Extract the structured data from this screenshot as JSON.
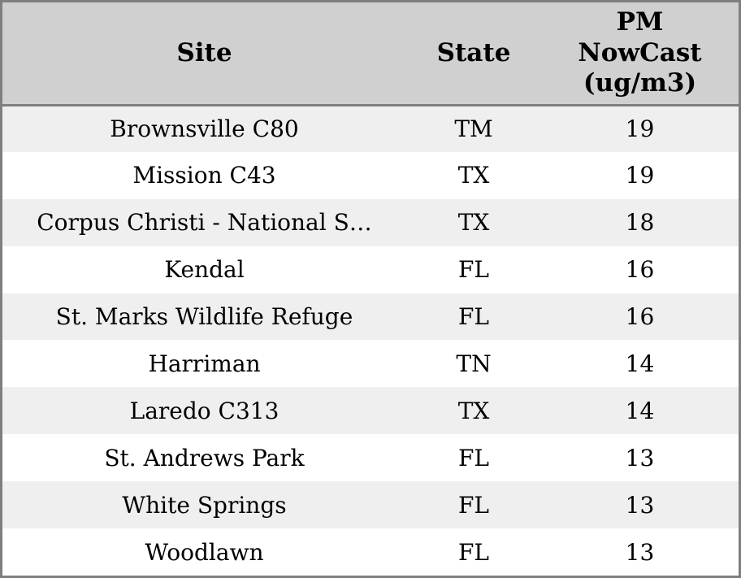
{
  "chart_data": {
    "type": "table",
    "columns": [
      "Site",
      "State",
      "PM NowCast (ug/m3)"
    ],
    "rows": [
      [
        "Brownsville C80",
        "TM",
        "19"
      ],
      [
        "Mission C43",
        "TX",
        "19"
      ],
      [
        "Corpus Christi - National S…",
        "TX",
        "18"
      ],
      [
        "Kendal",
        "FL",
        "16"
      ],
      [
        "St. Marks Wildlife Refuge",
        "FL",
        "16"
      ],
      [
        "Harriman",
        "TN",
        "14"
      ],
      [
        "Laredo C313",
        "TX",
        "14"
      ],
      [
        "St. Andrews Park",
        "FL",
        "13"
      ],
      [
        "White Springs",
        "FL",
        "13"
      ],
      [
        "Woodlawn",
        "FL",
        "13"
      ]
    ],
    "legend": null,
    "grid": "horizontal-stripes"
  },
  "header": {
    "site_label": "Site",
    "state_label": "State",
    "pm_label": "PM\nNowCast\n(ug/m3)"
  },
  "colors": {
    "header_bg": "#d0d0d0",
    "stripe_bg": "#efefef",
    "row_bg": "#ffffff",
    "border": "#7f7f7f",
    "text": "#000000"
  }
}
